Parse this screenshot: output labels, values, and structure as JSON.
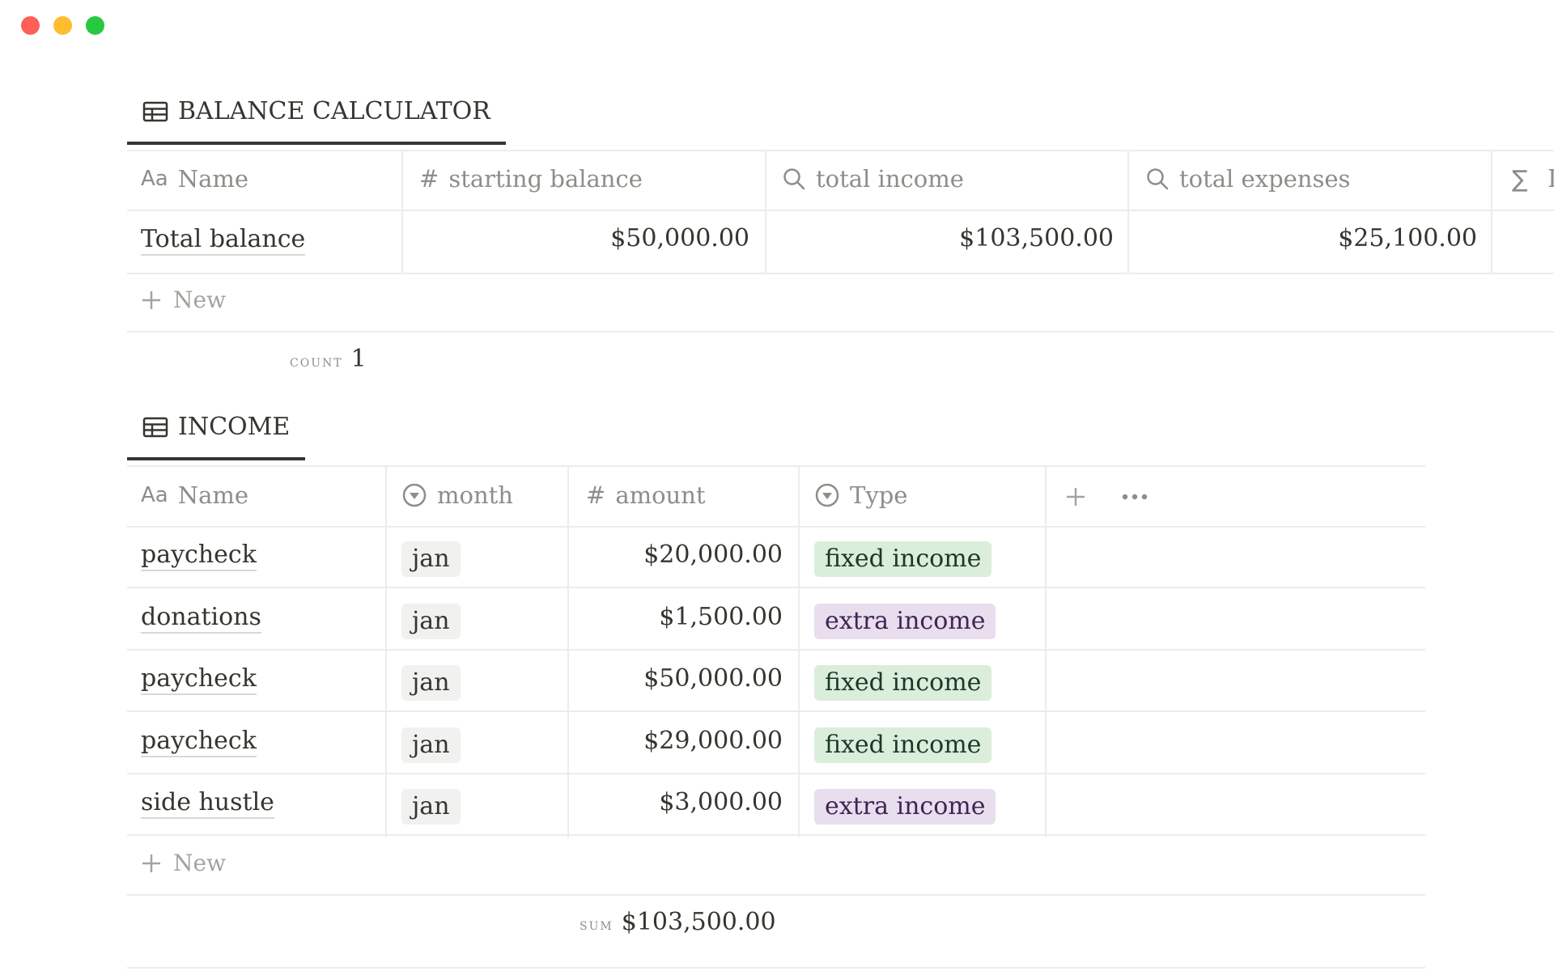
{
  "window": {
    "controls": [
      "close",
      "minimize",
      "zoom"
    ]
  },
  "colors": {
    "close": "#fe5f57",
    "minimize": "#febc2e",
    "zoom": "#28c840"
  },
  "balance": {
    "title": "BALANCE CALCULATOR",
    "columns": {
      "name": "Name",
      "starting_balance": "starting balance",
      "total_income": "total income",
      "total_expenses": "total expenses"
    },
    "row": {
      "name": "Total balance",
      "starting_balance": "$50,000.00",
      "total_income": "$103,500.00",
      "total_expenses": "$25,100.00"
    },
    "new_label": "New",
    "calc_label": "COUNT",
    "calc_value": "1"
  },
  "income": {
    "title": "INCOME",
    "columns": {
      "name": "Name",
      "month": "month",
      "amount": "amount",
      "type": "Type"
    },
    "rows": [
      {
        "name": "paycheck",
        "month": "jan",
        "amount": "$20,000.00",
        "type": "fixed income"
      },
      {
        "name": "donations",
        "month": "jan",
        "amount": "$1,500.00",
        "type": "extra income"
      },
      {
        "name": "paycheck",
        "month": "jan",
        "amount": "$50,000.00",
        "type": "fixed income"
      },
      {
        "name": "paycheck",
        "month": "jan",
        "amount": "$29,000.00",
        "type": "fixed income"
      },
      {
        "name": "side hustle",
        "month": "jan",
        "amount": "$3,000.00",
        "type": "extra income"
      }
    ],
    "new_label": "New",
    "calc_label": "SUM",
    "calc_value": "$103,500.00"
  }
}
